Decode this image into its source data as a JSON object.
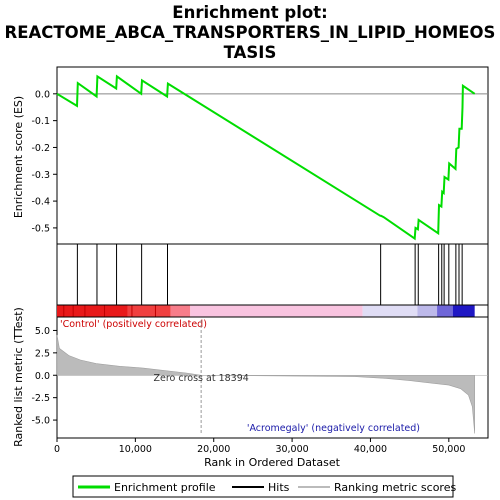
{
  "chart_data": {
    "type": "line",
    "title_lines": [
      "Enrichment plot:",
      "REACTOME_ABCA_TRANSPORTERS_IN_LIPID_HOMEOS",
      "TASIS"
    ],
    "xlabel": "Rank in Ordered Dataset",
    "ylabel_top": "Enrichment score (ES)",
    "ylabel_bottom": "Ranked list metric (TTest)",
    "x_range": [
      0,
      55000
    ],
    "x_ticks": [
      0,
      10000,
      20000,
      30000,
      40000,
      50000
    ],
    "x_tick_labels": [
      "0",
      "10,000",
      "20,000",
      "30,000",
      "40,000",
      "50,000"
    ],
    "es_range": [
      -0.56,
      0.1
    ],
    "es_ticks": [
      0.0,
      -0.1,
      -0.2,
      -0.3,
      -0.4,
      -0.5
    ],
    "es_tick_labels": [
      "0.0",
      "-0.1",
      "-0.2",
      "-0.3",
      "-0.4",
      "-0.5"
    ],
    "metric_range": [
      -7,
      6.5
    ],
    "metric_ticks": [
      5.0,
      2.5,
      0.0,
      -2.5,
      -5.0
    ],
    "metric_tick_labels": [
      "5.0",
      "2.5",
      "0.0",
      "-2.5",
      "-5.0"
    ],
    "dataset_size": 53300,
    "zero_cross_rank": 18394,
    "hits": [
      2600,
      5100,
      7600,
      10800,
      14100,
      41300,
      45700,
      46100,
      48700,
      49100,
      49400,
      50000,
      50900,
      51300,
      51700
    ],
    "es_points": [
      [
        0,
        0.0
      ],
      [
        2550,
        -0.045
      ],
      [
        2650,
        0.04
      ],
      [
        5050,
        -0.01
      ],
      [
        5150,
        0.065
      ],
      [
        7550,
        0.02
      ],
      [
        7650,
        0.065
      ],
      [
        10750,
        0.0
      ],
      [
        10850,
        0.05
      ],
      [
        14050,
        -0.01
      ],
      [
        14150,
        0.038
      ],
      [
        41250,
        -0.455
      ],
      [
        41350,
        -0.455
      ],
      [
        41700,
        -0.46
      ],
      [
        45650,
        -0.54
      ],
      [
        45750,
        -0.5
      ],
      [
        46050,
        -0.505
      ],
      [
        46150,
        -0.47
      ],
      [
        48650,
        -0.52
      ],
      [
        48750,
        -0.415
      ],
      [
        49050,
        -0.42
      ],
      [
        49150,
        -0.365
      ],
      [
        49350,
        -0.37
      ],
      [
        49450,
        -0.31
      ],
      [
        49950,
        -0.32
      ],
      [
        50050,
        -0.26
      ],
      [
        50850,
        -0.28
      ],
      [
        50950,
        -0.205
      ],
      [
        51250,
        -0.2
      ],
      [
        51350,
        -0.13
      ],
      [
        51650,
        -0.13
      ],
      [
        51750,
        -0.05
      ],
      [
        51800,
        0.03
      ],
      [
        53300,
        0.0
      ]
    ],
    "metric_points": [
      [
        0,
        4.5
      ],
      [
        300,
        3.0
      ],
      [
        1500,
        2.2
      ],
      [
        3000,
        1.7
      ],
      [
        5000,
        1.3
      ],
      [
        8000,
        1.0
      ],
      [
        11000,
        0.8
      ],
      [
        14000,
        0.5
      ],
      [
        16500,
        0.25
      ],
      [
        18394,
        0.0
      ],
      [
        25000,
        -0.05
      ],
      [
        38000,
        -0.15
      ],
      [
        42000,
        -0.35
      ],
      [
        45000,
        -0.6
      ],
      [
        48000,
        -0.9
      ],
      [
        50000,
        -1.1
      ],
      [
        51500,
        -1.5
      ],
      [
        52500,
        -2.2
      ],
      [
        53000,
        -3.5
      ],
      [
        53300,
        -6.5
      ]
    ],
    "annotations": {
      "positive": "'Control' (positively correlated)",
      "negative": "'Acromegaly' (negatively correlated)",
      "zero_cross": "Zero cross at 18394"
    },
    "legend": [
      "Enrichment profile",
      "Hits",
      "Ranking metric scores"
    ],
    "colors": {
      "profile": "#00dd00",
      "hits": "#000000",
      "metric_fill": "#bbbbbb",
      "positive": "#ff0000",
      "negative": "#0000ff"
    }
  }
}
